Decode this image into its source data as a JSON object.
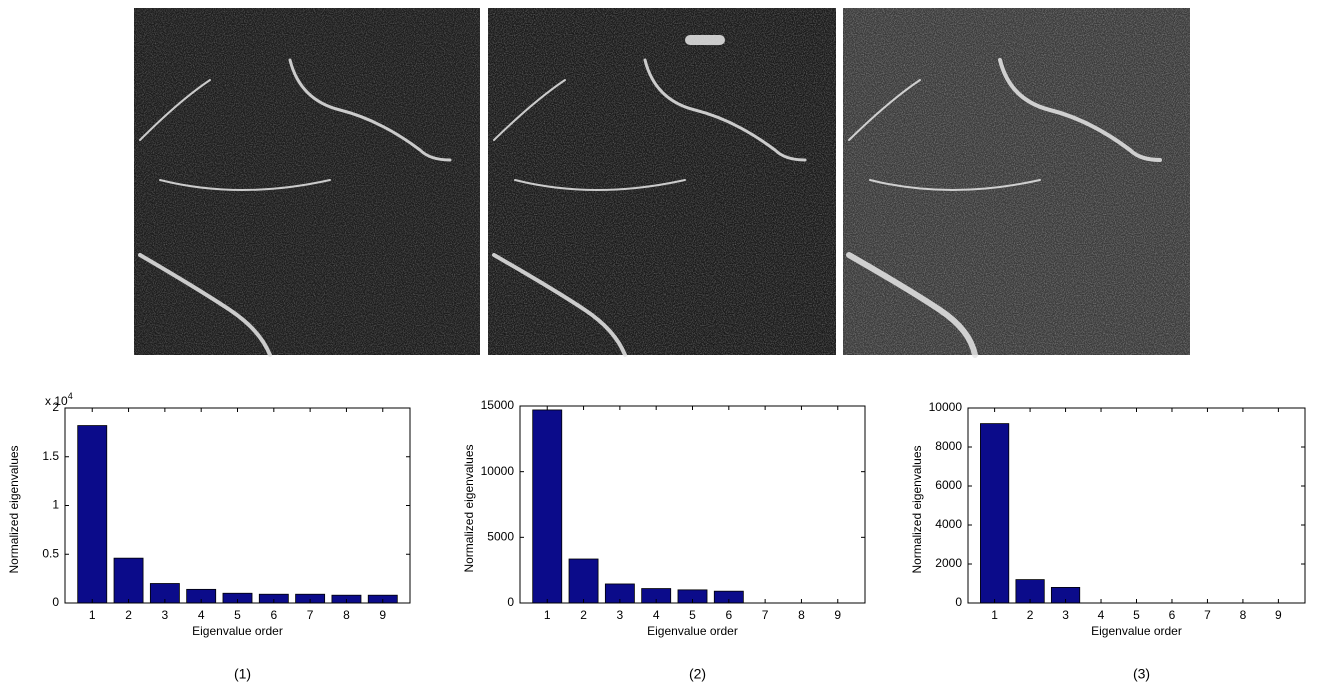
{
  "chart_data": [
    {
      "type": "bar",
      "categories": [
        "1",
        "2",
        "3",
        "4",
        "5",
        "6",
        "7",
        "8",
        "9"
      ],
      "values": [
        1.82,
        0.46,
        0.2,
        0.14,
        0.1,
        0.09,
        0.09,
        0.08,
        0.08
      ],
      "color": "#0b0b8a",
      "ylim": [
        0,
        2
      ],
      "yticks": [
        0,
        0.5,
        1,
        1.5,
        2
      ],
      "y_multiplier": {
        "base": "x 10",
        "power": "4"
      },
      "xlabel": "Eigenvalue order",
      "ylabel": "Normalized eigenvalues",
      "caption": "(1)"
    },
    {
      "type": "bar",
      "categories": [
        "1",
        "2",
        "3",
        "4",
        "5",
        "6",
        "7",
        "8",
        "9"
      ],
      "values": [
        14700,
        3350,
        1450,
        1100,
        1000,
        900,
        0,
        0,
        0
      ],
      "color": "#0b0b8a",
      "ylim": [
        0,
        15000
      ],
      "yticks": [
        0,
        5000,
        10000,
        15000
      ],
      "xlabel": "Eigenvalue order",
      "ylabel": "Normalized eigenvalues",
      "caption": "(2)"
    },
    {
      "type": "bar",
      "categories": [
        "1",
        "2",
        "3",
        "4",
        "5",
        "6",
        "7",
        "8",
        "9"
      ],
      "values": [
        9200,
        1200,
        800,
        0,
        0,
        0,
        0,
        0,
        0
      ],
      "color": "#0b0b8a",
      "ylim": [
        0,
        10000
      ],
      "yticks": [
        0,
        2000,
        4000,
        6000,
        8000,
        10000
      ],
      "xlabel": "Eigenvalue order",
      "ylabel": "Normalized eigenvalues",
      "caption": "(3)"
    }
  ]
}
